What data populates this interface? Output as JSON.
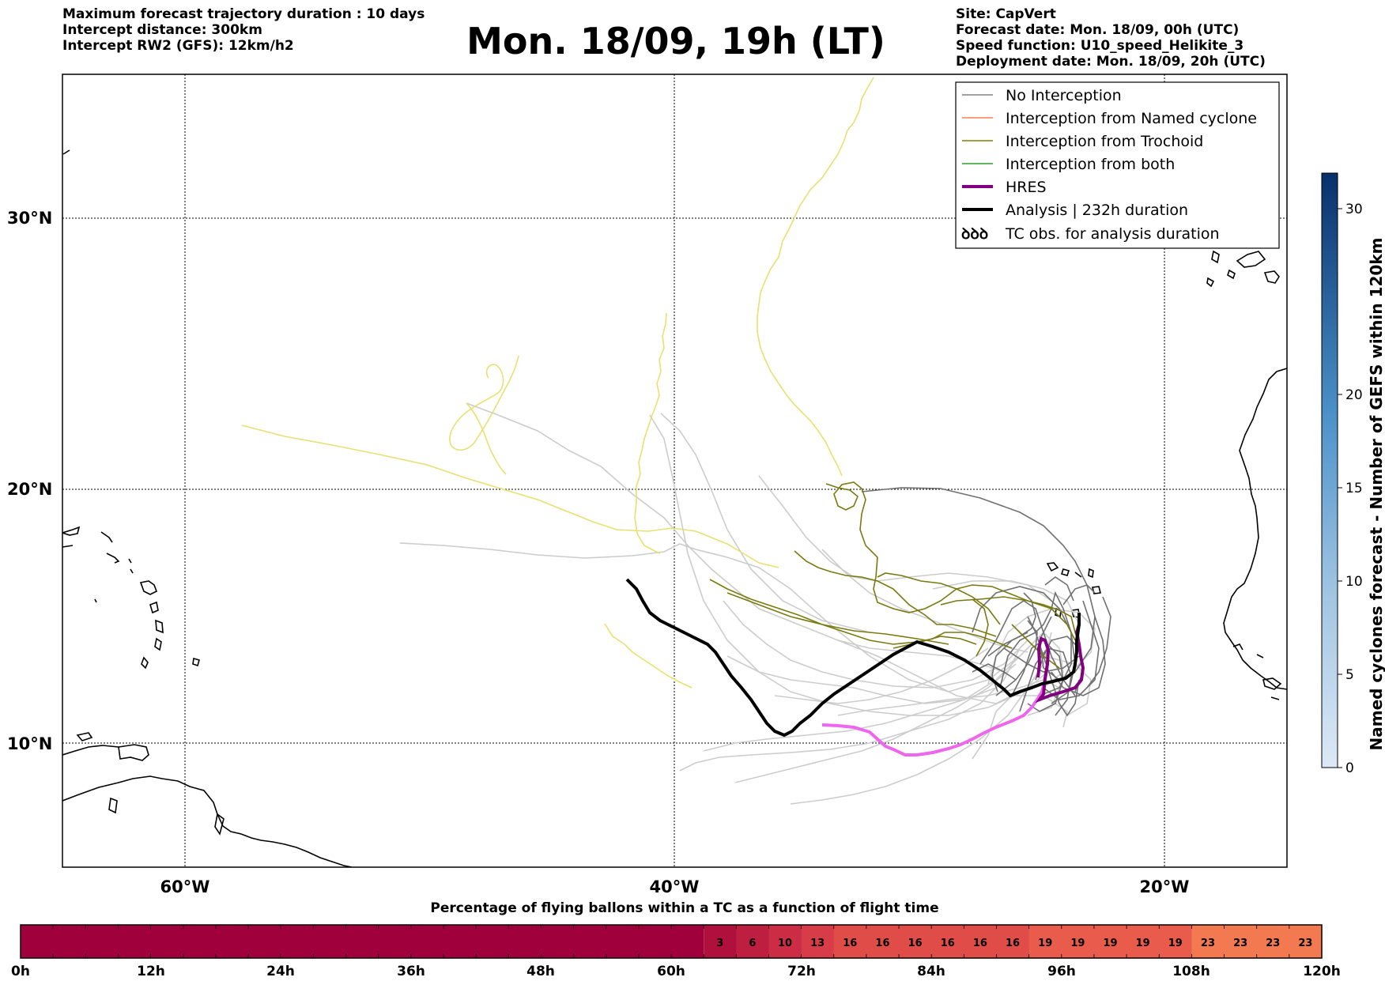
{
  "header": {
    "left_lines": [
      "Maximum forecast trajectory duration : 10 days",
      "Intercept distance: 300km",
      "Intercept RW2 (GFS):  12km/h2"
    ],
    "title": "Mon. 18/09, 19h (LT)",
    "right_lines": [
      "Site: CapVert",
      "Forecast date: Mon. 18/09, 00h (UTC)",
      "Speed function: U10_speed_Helikite_3",
      "Deployment date: Mon. 18/09, 20h (UTC)"
    ]
  },
  "map": {
    "lat_labels": [
      "30°N",
      "20°N",
      "10°N"
    ],
    "lon_labels": [
      "60°W",
      "40°W",
      "20°W"
    ],
    "legend": [
      {
        "label": "No Interception",
        "color": "#808080",
        "width": 1.5
      },
      {
        "label": "Interception from Named cyclone",
        "color": "#ff7f50",
        "width": 1.5
      },
      {
        "label": "Interception from Trochoid",
        "color": "#808000",
        "width": 1.5
      },
      {
        "label": "Interception from both",
        "color": "#2ca02c",
        "width": 1.5
      },
      {
        "label": "HRES",
        "color": "#800080",
        "width": 4
      },
      {
        "label": "Analysis | 232h duration",
        "color": "#000000",
        "width": 4
      },
      {
        "label": "TC obs. for analysis duration",
        "color": "#000000",
        "symbol": "ꝺꝺꝺ"
      }
    ],
    "colors": {
      "no_interception": "#808080",
      "light_gray": "#cccccc",
      "yellow": "#e8e070",
      "trochoid": "#7a7a10",
      "hres": "#800080",
      "hres_light": "#ee66ee",
      "analysis": "#000000"
    }
  },
  "colorbar_right": {
    "label": "Named cyclones forecast - Number of GEFS within 120km",
    "ticks": [
      "0",
      "5",
      "10",
      "15",
      "20",
      "30"
    ]
  },
  "bottom_bar": {
    "title": "Percentage of flying ballons within a TC as a function of flight time",
    "time_labels": [
      "0h",
      "12h",
      "24h",
      "36h",
      "48h",
      "60h",
      "72h",
      "84h",
      "96h",
      "108h",
      "120h"
    ],
    "percentages": [
      "3",
      "6",
      "10",
      "13",
      "16",
      "16",
      "16",
      "16",
      "16",
      "16",
      "19",
      "19",
      "19",
      "19",
      "19",
      "23",
      "23",
      "23",
      "23"
    ],
    "colors": {
      "base": "#a0003c",
      "p3": "#b0103c",
      "p6": "#be1e40",
      "p10": "#cc2c44",
      "p13": "#d83c48",
      "p16": "#e04c48",
      "p19": "#e95c4c",
      "p23": "#f37a50"
    }
  }
}
